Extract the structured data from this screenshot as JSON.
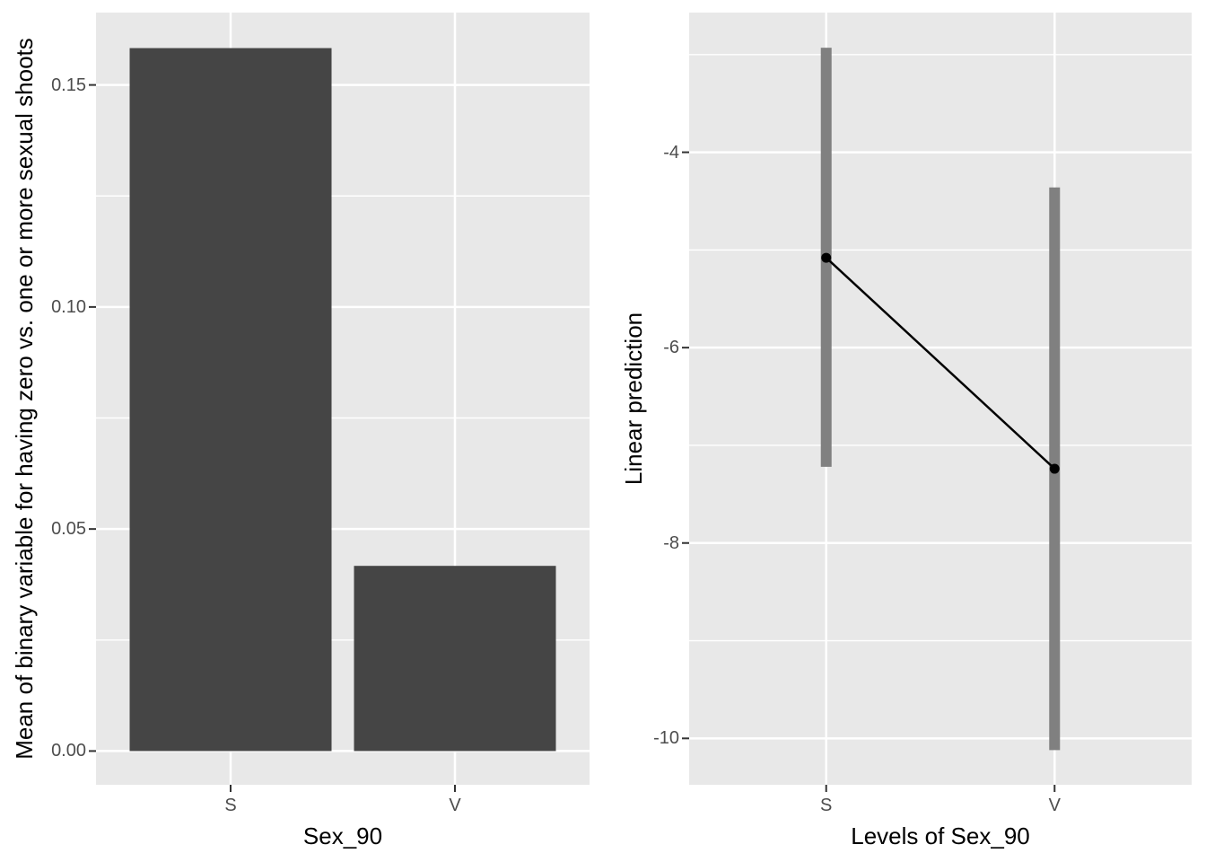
{
  "figure": {
    "background": "#ffffff",
    "panel_background": "#E8E8E8",
    "grid_color": "#ffffff",
    "tick_mark_color": "#333333",
    "tick_label_color": "#4d4d4d",
    "axis_title_color": "#000000"
  },
  "chart_data": [
    {
      "type": "bar",
      "title": "",
      "xlabel": "Sex_90",
      "ylabel": "Mean of binary variable for having zero vs. one or more sexual shoots",
      "categories": [
        "S",
        "V"
      ],
      "values": [
        0.1583,
        0.0417
      ],
      "bar_fill": "#454545",
      "y_major_tick_labels": [
        "0.00",
        "0.05",
        "0.10",
        "0.15"
      ],
      "y_major_tick_values": [
        0.0,
        0.05,
        0.1,
        0.15
      ],
      "y_minor_tick_values": [
        0.025,
        0.075,
        0.125
      ],
      "ylim": [
        -0.0076,
        0.1663
      ],
      "grid": "on",
      "legend_position": "none"
    },
    {
      "type": "scatter",
      "title": "",
      "xlabel": "Levels of Sex_90",
      "ylabel": "Linear prediction",
      "categories": [
        "S",
        "V"
      ],
      "series": [
        {
          "name": "Linear prediction",
          "points": [
            -5.08,
            -7.24
          ],
          "ci_low": [
            -7.22,
            -10.12
          ],
          "ci_high": [
            -2.93,
            -4.36
          ]
        }
      ],
      "point_color": "#000000",
      "line_color": "#000000",
      "errorbar_color": "#808080",
      "y_major_tick_labels": [
        "-4",
        "-6",
        "-8",
        "-10"
      ],
      "y_major_tick_values": [
        -4,
        -6,
        -8,
        -10
      ],
      "y_minor_tick_values": [
        -3,
        -5,
        -7,
        -9
      ],
      "ylim": [
        -10.475,
        -2.57
      ],
      "grid": "on",
      "legend_position": "none"
    }
  ]
}
